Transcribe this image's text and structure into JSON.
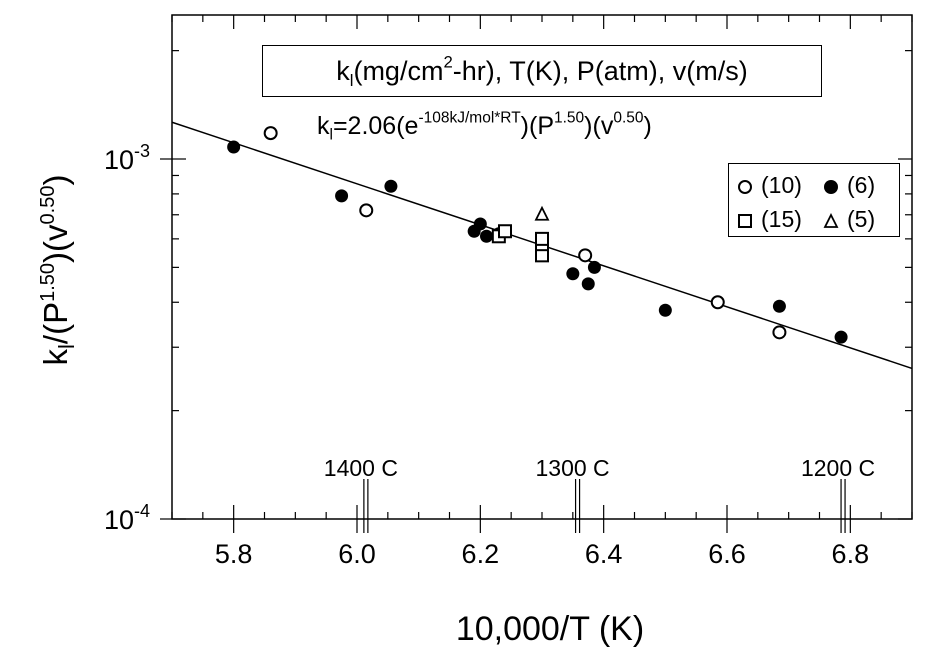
{
  "chart_data": {
    "type": "scatter",
    "title": "",
    "xlabel": "10,000/T (K)",
    "ylabel_main": "k",
    "ylabel_sub": "l",
    "ylabel_part1": "/(P",
    "ylabel_exp1": "1.50",
    "ylabel_part2": ")(v",
    "ylabel_exp2": "0.50",
    "ylabel_part3": ")",
    "xlim": [
      5.7,
      6.9
    ],
    "ylim_log10": [
      -4,
      -2.6
    ],
    "y_scale": "log",
    "x_ticks": [
      "5.8",
      "6.0",
      "6.2",
      "6.4",
      "6.6",
      "6.8"
    ],
    "x_tick_values": [
      5.8,
      6.0,
      6.2,
      6.4,
      6.6,
      6.8
    ],
    "y_tick_labels": [
      {
        "base": "10",
        "exp": "-3",
        "value": 0.001
      },
      {
        "base": "10",
        "exp": "-4",
        "value": 0.0001
      }
    ],
    "celsius_labels": [
      {
        "text": "1400 C",
        "x": 6.0144
      },
      {
        "text": "1300 C",
        "x": 6.3577
      },
      {
        "text": "1200 C",
        "x": 6.7882
      }
    ],
    "fit_line": {
      "x": [
        5.7,
        6.9
      ],
      "y": [
        0.001265,
        0.000262
      ]
    },
    "series": [
      {
        "name": "(10)",
        "marker": "open-circle",
        "points": [
          [
            5.86,
            0.00118
          ],
          [
            6.015,
            0.00072
          ],
          [
            6.37,
            0.00054
          ],
          [
            6.585,
            0.0004
          ],
          [
            6.685,
            0.00033
          ]
        ]
      },
      {
        "name": "(6)",
        "marker": "filled-circle",
        "points": [
          [
            5.8,
            0.00108
          ],
          [
            5.975,
            0.00079
          ],
          [
            6.055,
            0.00084
          ],
          [
            6.19,
            0.00063
          ],
          [
            6.2,
            0.00066
          ],
          [
            6.21,
            0.00061
          ],
          [
            6.23,
            0.00062
          ],
          [
            6.35,
            0.00048
          ],
          [
            6.375,
            0.00045
          ],
          [
            6.385,
            0.0005
          ],
          [
            6.5,
            0.00038
          ],
          [
            6.685,
            0.00039
          ],
          [
            6.785,
            0.00032
          ]
        ]
      },
      {
        "name": "(15)",
        "marker": "open-square",
        "points": [
          [
            6.23,
            0.00061
          ],
          [
            6.24,
            0.00063
          ],
          [
            6.3,
            0.00054
          ],
          [
            6.3,
            0.00058
          ],
          [
            6.3,
            0.0006
          ]
        ]
      },
      {
        "name": "(5)",
        "marker": "open-triangle",
        "points": [
          [
            6.3,
            0.0007
          ]
        ]
      }
    ],
    "annotation_box": {
      "k": "k",
      "k_sub": "l",
      "part1": "(mg/cm",
      "part1_sup": "2",
      "part2": "-hr), T(K), P(atm), v(m/s)"
    },
    "equation": {
      "k": "k",
      "k_sub": "l",
      "lhs": "=2.06(e",
      "exp": "-108kJ/mol*RT",
      "mid1": ")(P",
      "pexp": "1.50",
      "mid2": ")(v",
      "vexp": "0.50",
      "end": ")"
    },
    "legend": [
      {
        "marker": "open-circle",
        "label": "(10)"
      },
      {
        "marker": "filled-circle",
        "label": "(6)"
      },
      {
        "marker": "open-square",
        "label": "(15)"
      },
      {
        "marker": "open-triangle",
        "label": "(5)"
      }
    ],
    "legend_position": "upper-right",
    "grid": false
  }
}
